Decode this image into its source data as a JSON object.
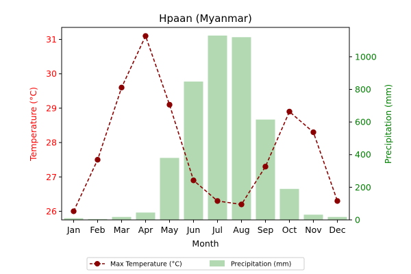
{
  "chart_data": {
    "type": "bar+line",
    "title": "Hpaan (Myanmar)",
    "xlabel": "Month",
    "categories": [
      "Jan",
      "Feb",
      "Mar",
      "Apr",
      "May",
      "Jun",
      "Jul",
      "Aug",
      "Sep",
      "Oct",
      "Nov",
      "Dec"
    ],
    "y_left": {
      "label": "Temperature (°C)",
      "ticks": [
        "26",
        "27",
        "28",
        "29",
        "30",
        "31"
      ],
      "range": [
        25.75,
        31.35
      ],
      "color": "#ff0000"
    },
    "y_right": {
      "label": "Precipitation (mm)",
      "ticks": [
        "0",
        "200",
        "400",
        "600",
        "800",
        "1000"
      ],
      "range": [
        0,
        1180
      ],
      "color": "#008000"
    },
    "series": [
      {
        "name": "Max Temperature (°C)",
        "type": "line",
        "axis": "left",
        "color": "#8b0000",
        "values": [
          26.0,
          27.5,
          29.6,
          31.1,
          29.1,
          26.9,
          26.3,
          26.2,
          27.3,
          28.9,
          28.3,
          26.3
        ]
      },
      {
        "name": "Precipitation (mm)",
        "type": "bar",
        "axis": "right",
        "color": "#b2d9b2",
        "values": [
          10,
          5,
          18,
          45,
          380,
          848,
          1130,
          1120,
          615,
          190,
          32,
          18
        ]
      }
    ],
    "legend": {
      "position": "bottom-center",
      "columns": 2
    },
    "grid": false
  }
}
